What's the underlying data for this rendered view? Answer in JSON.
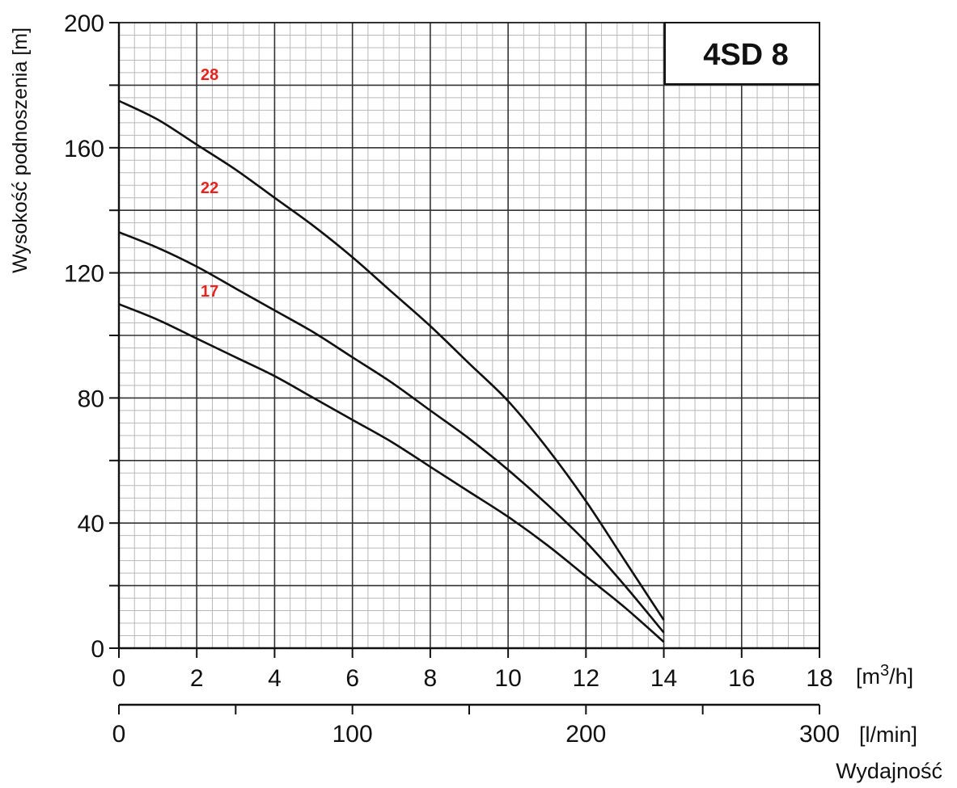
{
  "chart_data": {
    "type": "line",
    "title": "4SD 8",
    "ylabel": "Wysokość podnoszenia [m]",
    "xlabel": "Wydajność",
    "x_unit_primary": "[m³/h]",
    "x_unit_primary_base": "[m",
    "x_unit_primary_sup": "3",
    "x_unit_primary_tail": "/h]",
    "x_unit_secondary": "[l/min]",
    "xlim": [
      0,
      18
    ],
    "ylim": [
      0,
      200
    ],
    "x_ticks": [
      "0",
      "2",
      "4",
      "6",
      "8",
      "10",
      "12",
      "14",
      "16",
      "18"
    ],
    "y_ticks": [
      "0",
      "40",
      "80",
      "120",
      "160",
      "200"
    ],
    "secondary_x_ticks": [
      "0",
      "100",
      "200",
      "300"
    ],
    "secondary_xlim": [
      0,
      300
    ],
    "grid": true,
    "series": [
      {
        "name": "28",
        "x": [
          0,
          1,
          2,
          3,
          4,
          5,
          6,
          7,
          8,
          9,
          10,
          11,
          12,
          13,
          14
        ],
        "y": [
          175,
          169,
          161,
          153,
          144,
          135,
          125,
          114,
          103,
          91,
          79,
          64,
          47,
          28,
          9
        ]
      },
      {
        "name": "22",
        "x": [
          0,
          1,
          2,
          3,
          4,
          5,
          6,
          7,
          8,
          9,
          10,
          11,
          12,
          13,
          14
        ],
        "y": [
          133,
          128,
          122,
          115,
          108,
          101,
          93,
          85,
          76,
          67,
          57,
          46,
          34,
          20,
          5
        ]
      },
      {
        "name": "17",
        "x": [
          0,
          1,
          2,
          3,
          4,
          5,
          6,
          7,
          8,
          9,
          10,
          11,
          12,
          13,
          14
        ],
        "y": [
          110,
          105,
          99,
          93,
          87,
          80,
          73,
          66,
          58,
          50,
          42,
          33,
          23,
          13,
          2
        ]
      }
    ]
  }
}
